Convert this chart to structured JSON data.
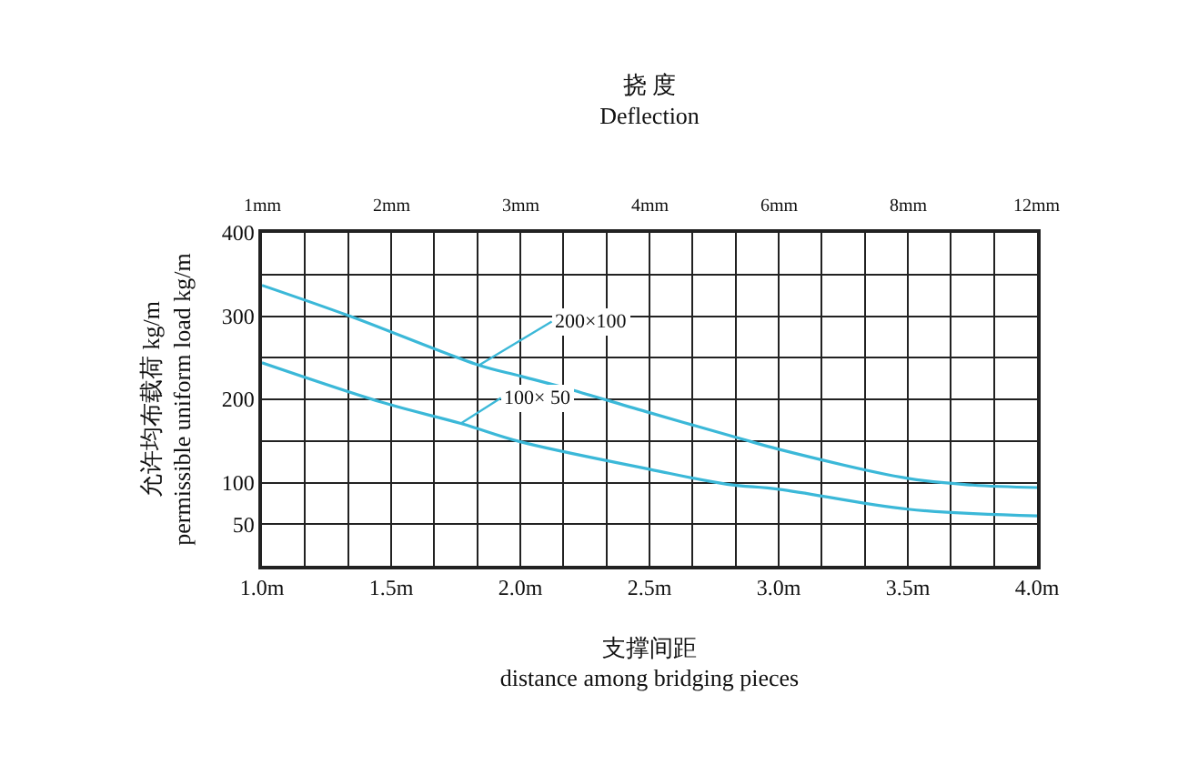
{
  "chart_data": {
    "type": "line",
    "title": "挠 度\nDeflection",
    "xlabel": "支撑间距\ndistance among bridging pieces",
    "ylabel": "允许均布载荷 kg/m\npermissible uniform load kg/m",
    "xlim": [
      1.0,
      4.0
    ],
    "xticks": [
      {
        "value": 1.0,
        "label": "1.0m"
      },
      {
        "value": 1.167,
        "label": null
      },
      {
        "value": 1.333,
        "label": null
      },
      {
        "value": 1.5,
        "label": "1.5m"
      },
      {
        "value": 1.667,
        "label": null
      },
      {
        "value": 1.833,
        "label": null
      },
      {
        "value": 2.0,
        "label": "2.0m"
      },
      {
        "value": 2.167,
        "label": null
      },
      {
        "value": 2.333,
        "label": null
      },
      {
        "value": 2.5,
        "label": "2.5m"
      },
      {
        "value": 2.667,
        "label": null
      },
      {
        "value": 2.833,
        "label": null
      },
      {
        "value": 3.0,
        "label": "3.0m"
      },
      {
        "value": 3.167,
        "label": null
      },
      {
        "value": 3.333,
        "label": null
      },
      {
        "value": 3.5,
        "label": "3.5m"
      },
      {
        "value": 3.667,
        "label": null
      },
      {
        "value": 3.833,
        "label": null
      },
      {
        "value": 4.0,
        "label": "4.0m"
      }
    ],
    "ylim": [
      0,
      400
    ],
    "yticks": [
      50,
      100,
      {
        "value": 150,
        "label": null
      },
      200,
      {
        "value": 250,
        "label": null
      },
      300,
      {
        "value": 350,
        "label": null
      },
      400
    ],
    "grid": true,
    "marker": "none",
    "line_style": "solid",
    "series": [
      {
        "color": "#3bb8d8",
        "x": [
          1.0,
          1.34,
          1.84,
          2.0,
          2.17,
          2.5,
          2.85,
          3.0,
          3.5,
          3.75,
          4.0
        ],
        "values": [
          337,
          300,
          241,
          228,
          214,
          184,
          153,
          140,
          105,
          97,
          94
        ]
      },
      {
        "color": "#3bb8d8",
        "x": [
          1.0,
          1.48,
          1.77,
          2.0,
          2.5,
          2.8,
          3.0,
          3.5,
          4.0
        ],
        "values": [
          244,
          195,
          171,
          149,
          116,
          98,
          92,
          68,
          60
        ]
      }
    ],
    "annotations": [
      {
        "text": "200×100",
        "x": 1.84,
        "y": 241
      },
      {
        "text": "100× 50",
        "x": 1.77,
        "y": 171
      },
      "1mm",
      "2mm",
      "3mm",
      "4mm",
      "6mm",
      "8mm",
      "12mm"
    ]
  }
}
